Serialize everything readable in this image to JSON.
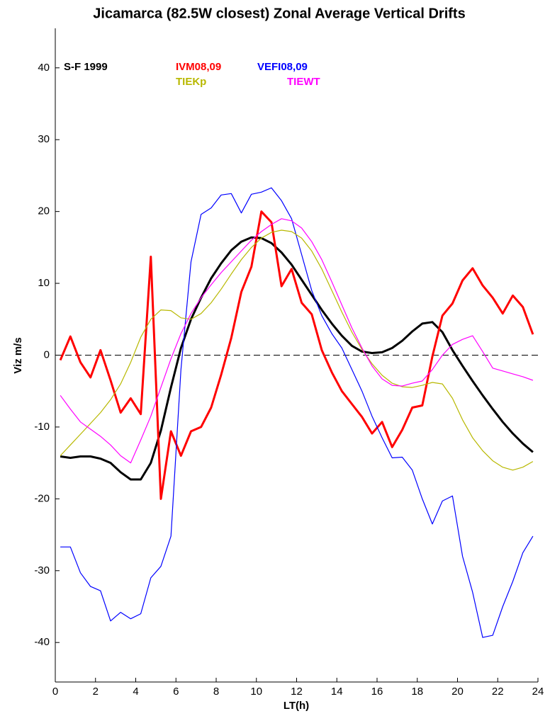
{
  "chart_data": {
    "type": "line",
    "title": "Jicamarca (82.5W closest) Zonal Average Vertical Drifts",
    "x_label": "LT(h)",
    "y_label": "Viz m/s",
    "xlim": [
      0,
      24
    ],
    "xticks": [
      0,
      2,
      4,
      6,
      8,
      10,
      12,
      14,
      16,
      18,
      20,
      22,
      24
    ],
    "ylim": [
      -45.5,
      45.5
    ],
    "yticks": [
      -40,
      -30,
      -20,
      -10,
      0,
      10,
      20,
      30,
      40
    ],
    "zero_line": 0,
    "x": [
      0.25,
      0.75,
      1.25,
      1.75,
      2.25,
      2.75,
      3.25,
      3.75,
      4.25,
      4.75,
      5.25,
      5.75,
      6.25,
      6.75,
      7.25,
      7.75,
      8.25,
      8.75,
      9.25,
      9.75,
      10.25,
      10.75,
      11.25,
      11.75,
      12.25,
      12.75,
      13.25,
      13.75,
      14.25,
      14.75,
      15.25,
      15.75,
      16.25,
      16.75,
      17.25,
      17.75,
      18.25,
      18.75,
      19.25,
      19.75,
      20.25,
      20.75,
      21.25,
      21.75,
      22.25,
      22.75,
      23.25,
      23.75
    ],
    "series": [
      {
        "name": "S-F 1999",
        "color": "#000000",
        "width": 3,
        "values": [
          -14.1,
          -14.3,
          -14.1,
          -14.1,
          -14.4,
          -15,
          -16.3,
          -17.3,
          -17.3,
          -15,
          -10.5,
          -4.5,
          1,
          5,
          8,
          10.7,
          12.8,
          14.6,
          15.8,
          16.4,
          16.3,
          15.6,
          14.3,
          12.6,
          10.5,
          8.4,
          6.3,
          4.4,
          2.7,
          1.3,
          0.5,
          0.3,
          0.4,
          1,
          2,
          3.3,
          4.4,
          4.6,
          3.2,
          0.7,
          -1.5,
          -3.6,
          -5.6,
          -7.5,
          -9.3,
          -10.9,
          -12.3,
          -13.5
        ]
      },
      {
        "name": "IVM08,09",
        "color": "#ff0000",
        "width": 3,
        "values": [
          -0.7,
          2.6,
          -1,
          -3.1,
          0.7,
          -3.5,
          -8,
          -6,
          -8.2,
          13.7,
          -20,
          -10.6,
          -14,
          -10.6,
          -10,
          -7.3,
          -2.7,
          2.4,
          8.8,
          12.3,
          20,
          18.5,
          9.6,
          12,
          7.3,
          5.7,
          0.7,
          -2.4,
          -5,
          -6.8,
          -8.6,
          -10.9,
          -9.3,
          -12.8,
          -10.4,
          -7.3,
          -7,
          -0.2,
          5.5,
          7.2,
          10.4,
          12.1,
          9.7,
          8,
          5.8,
          8.3,
          6.7,
          2.9
        ]
      },
      {
        "name": "VEFI08,09",
        "color": "#0000ff",
        "width": 1.2,
        "values": [
          -26.7,
          -26.7,
          -30.3,
          -32.2,
          -32.8,
          -37,
          -35.8,
          -36.7,
          -36,
          -31,
          -29.4,
          -25.2,
          -2,
          13,
          19.6,
          20.5,
          22.3,
          22.5,
          19.8,
          22.4,
          22.7,
          23.3,
          21.5,
          19,
          14,
          9,
          5.5,
          3,
          1,
          -2,
          -5,
          -8.5,
          -11.5,
          -14.3,
          -14.2,
          -16,
          -20,
          -23.5,
          -20.3,
          -19.6,
          -28,
          -33,
          -39.3,
          -39,
          -35,
          -31.5,
          -27.5,
          -25.2
        ]
      },
      {
        "name": "TIEKp",
        "color": "#b8b800",
        "width": 1.2,
        "values": [
          -14,
          -12.5,
          -11,
          -9.5,
          -8,
          -6.2,
          -4,
          -1,
          2.5,
          5,
          6.3,
          6.2,
          5.2,
          5,
          5.8,
          7.3,
          9.2,
          11.3,
          13.3,
          15,
          16.3,
          17.1,
          17.4,
          17.2,
          16.3,
          14.5,
          12,
          9,
          6,
          3.2,
          0.8,
          -1.2,
          -2.8,
          -3.9,
          -4.4,
          -4.5,
          -4.2,
          -3.8,
          -4,
          -6,
          -9,
          -11.5,
          -13.3,
          -14.7,
          -15.6,
          -16,
          -15.6,
          -14.8
        ]
      },
      {
        "name": "TIEWT",
        "color": "#ff00ff",
        "width": 1.2,
        "values": [
          -5.6,
          -7.5,
          -9.3,
          -10.3,
          -11.3,
          -12.5,
          -14,
          -15,
          -11.8,
          -8.5,
          -4.5,
          -0.5,
          3,
          5.8,
          8,
          9.8,
          11.5,
          13,
          14.5,
          16,
          17.2,
          18.2,
          19,
          18.7,
          17.7,
          15.8,
          13.3,
          10.2,
          7,
          3.8,
          1,
          -1.5,
          -3.3,
          -4.2,
          -4.3,
          -3.9,
          -3.6,
          -2,
          0,
          1.5,
          2.2,
          2.7,
          0.5,
          -1.8,
          -2.2,
          -2.6,
          -3,
          -3.5
        ]
      }
    ]
  }
}
